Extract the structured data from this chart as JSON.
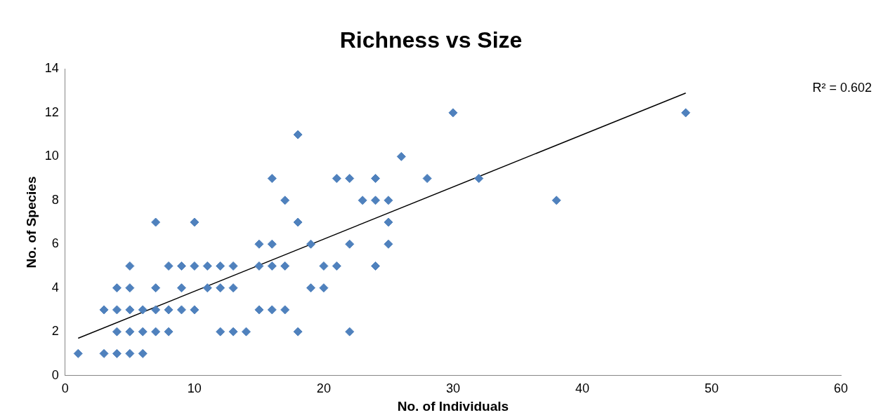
{
  "chart_data": {
    "type": "scatter",
    "title": "Richness vs Size",
    "xlabel": "No. of Individuals",
    "ylabel": "No. of Species",
    "xlim": [
      0,
      60
    ],
    "xticks": [
      0,
      10,
      20,
      30,
      40,
      50,
      60
    ],
    "ylim": [
      0,
      14
    ],
    "yticks": [
      0,
      2,
      4,
      6,
      8,
      10,
      12,
      14
    ],
    "grid": false,
    "legend": false,
    "marker": "diamond",
    "series": [
      {
        "type": "scatter",
        "color": "#4f81bd",
        "x": [
          1,
          3,
          3,
          4,
          4,
          4,
          4,
          5,
          5,
          5,
          5,
          5,
          6,
          6,
          6,
          7,
          7,
          7,
          7,
          8,
          8,
          8,
          9,
          9,
          9,
          10,
          10,
          10,
          11,
          11,
          12,
          12,
          12,
          13,
          13,
          13,
          14,
          15,
          15,
          15,
          16,
          16,
          16,
          16,
          17,
          17,
          17,
          18,
          18,
          18,
          19,
          19,
          20,
          20,
          21,
          21,
          22,
          22,
          22,
          23,
          24,
          24,
          24,
          25,
          25,
          25,
          26,
          28,
          30,
          32,
          38,
          48
        ],
        "values": [
          1,
          3,
          1,
          4,
          3,
          2,
          1,
          5,
          4,
          3,
          2,
          1,
          3,
          2,
          1,
          7,
          4,
          3,
          2,
          5,
          3,
          2,
          5,
          4,
          3,
          7,
          5,
          3,
          5,
          4,
          5,
          4,
          2,
          5,
          4,
          2,
          2,
          6,
          5,
          3,
          9,
          6,
          5,
          3,
          8,
          5,
          3,
          11,
          7,
          2,
          6,
          4,
          5,
          4,
          9,
          5,
          9,
          6,
          2,
          8,
          9,
          8,
          5,
          8,
          7,
          6,
          10,
          9,
          12,
          9,
          8,
          12
        ]
      },
      {
        "type": "line",
        "color": "#000000",
        "x": [
          1,
          48
        ],
        "values": [
          1.7,
          12.9
        ],
        "marker": "none"
      }
    ],
    "annotations": [
      "R² = 0.602"
    ]
  }
}
